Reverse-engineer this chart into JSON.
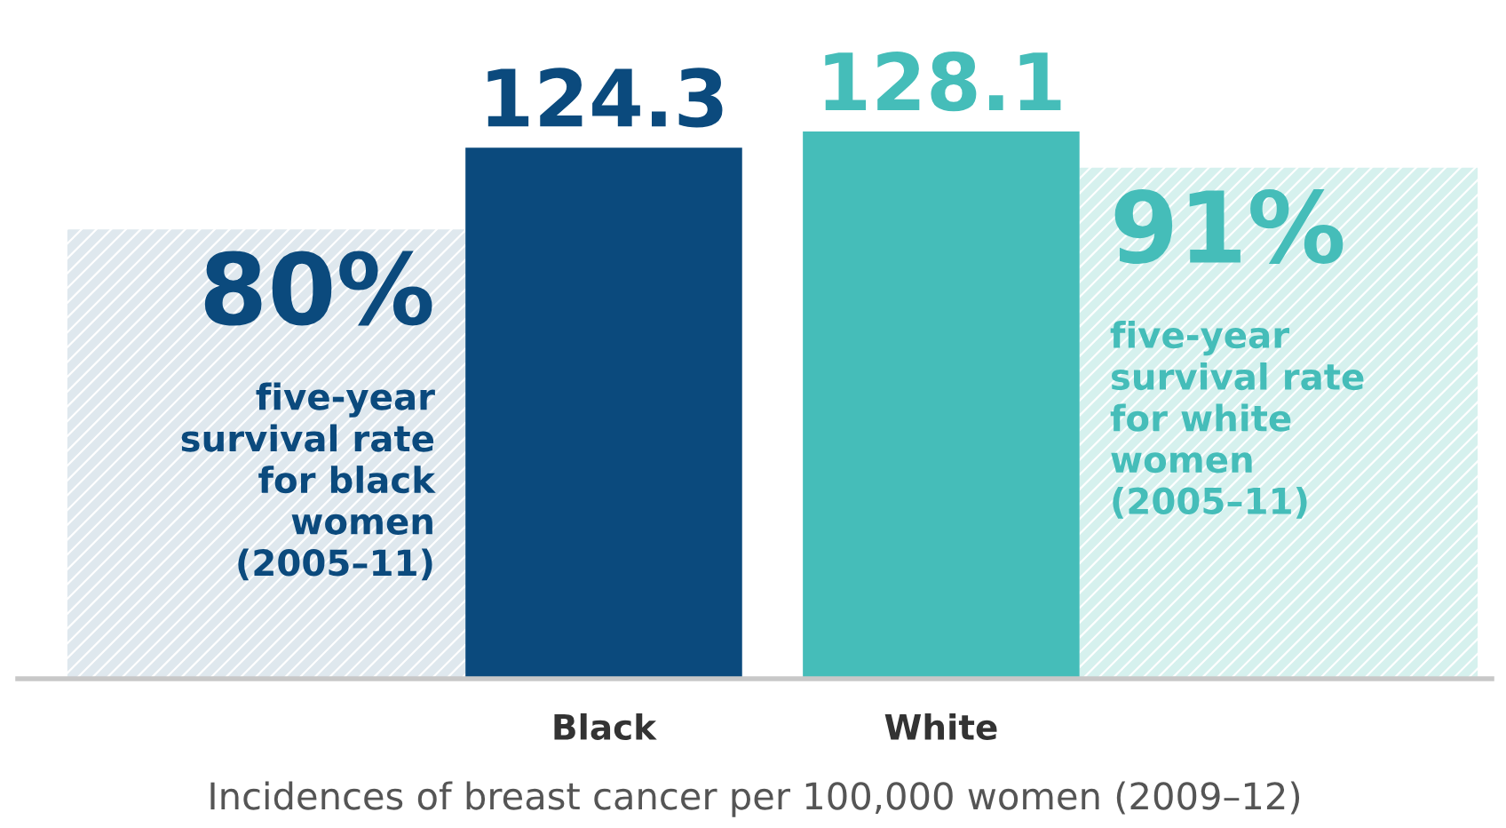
{
  "chart_data": {
    "type": "bar",
    "categories": [
      null,
      "Black",
      "White",
      null
    ],
    "xlabel": "Incidences of breast cancer per 100,000 women (2009–12)",
    "series": [
      {
        "axis": "y2",
        "colors": [
          "#dfe8ee",
          null,
          null,
          "#d6f1ee"
        ],
        "values": [
          80,
          null,
          null,
          91
        ],
        "value_labels": [
          "80%",
          null,
          null,
          "91%"
        ]
      },
      {
        "axis": "y",
        "colors": [
          null,
          "#0b4a7d",
          "#45bdb9",
          null
        ],
        "values": [
          null,
          124.3,
          128.1,
          null
        ],
        "value_labels": [
          null,
          "124.3",
          "128.1",
          null
        ]
      }
    ],
    "tick_labels": "x",
    "grid": false,
    "legend": false,
    "annotations": [
      "five-year\nsurvival rate\nfor black\nwomen\n(2005–11)",
      "five-year\nsurvival rate\nfor white\nwomen\n(2005–11)"
    ]
  }
}
